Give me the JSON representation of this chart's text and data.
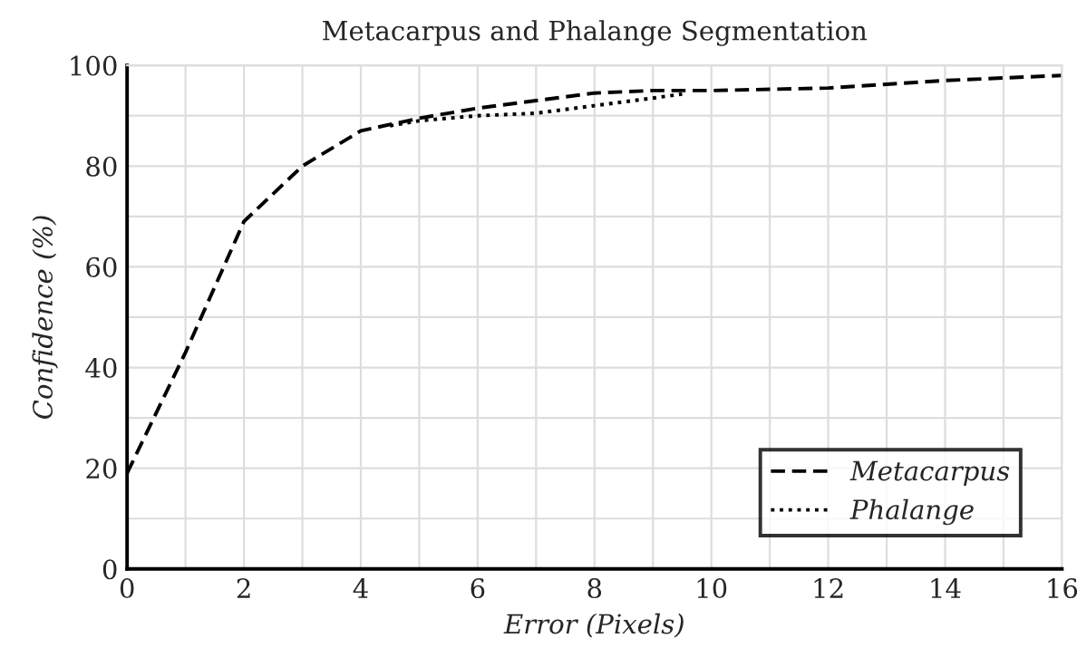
{
  "chart_data": {
    "type": "line",
    "title": "Metacarpus and Phalange Segmentation",
    "xlabel": "Error (Pixels)",
    "ylabel": "Confidence (%)",
    "xlim": [
      0,
      16
    ],
    "ylim": [
      0,
      100
    ],
    "xticks": [
      0,
      2,
      4,
      6,
      8,
      10,
      12,
      14,
      16
    ],
    "yticks": [
      0,
      20,
      40,
      60,
      80,
      100
    ],
    "grid": true,
    "legend": "bottom right",
    "series": [
      {
        "name": "Metacarpus",
        "color": "#000000",
        "line_style": "dashed",
        "x": [
          0,
          1,
          2,
          3,
          4,
          5,
          6,
          7,
          8,
          9,
          10,
          12,
          14,
          16
        ],
        "values": [
          19,
          43,
          69,
          80,
          87,
          89.5,
          91.5,
          93,
          94.5,
          95,
          95,
          95.5,
          97,
          98
        ]
      },
      {
        "name": "Phalange",
        "color": "#000000",
        "line_style": "dotted",
        "x": [
          4.5,
          5,
          6,
          7,
          8,
          9,
          9.5
        ],
        "values": [
          88,
          89,
          90,
          90.5,
          92,
          93.5,
          94.3
        ]
      }
    ]
  }
}
